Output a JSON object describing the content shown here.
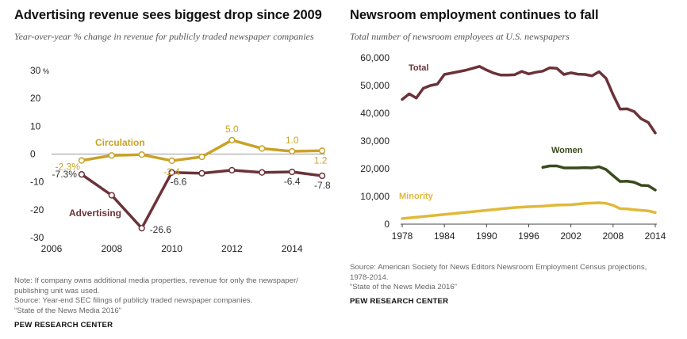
{
  "colors": {
    "circulation": "#c9a227",
    "advertising": "#6b3239",
    "total": "#6b3239",
    "women": "#3a4a1e",
    "minority": "#e0b93a",
    "zero_line": "#9a9a9a",
    "grid": "#dddddd"
  },
  "left": {
    "title": "Advertising revenue sees biggest drop since 2009",
    "subtitle": "Year-over-year % change in revenue for publicly traded newspaper companies",
    "notes": [
      "Note: If company owns additional media properties, revenue for only the newspaper/",
      "publishing unit was used.",
      "Source: Year-end SEC filings of publicly traded newspaper companies.",
      "“State of the News Media 2016”"
    ],
    "brand": "PEW RESEARCH CENTER"
  },
  "right": {
    "title": "Newsroom employment continues to fall",
    "subtitle": "Total number of newsroom employees at U.S. newspapers",
    "notes": [
      "Source: American Society for News Editors Newsroom Employment Census projections,",
      "1978-2014.",
      "“State of the News Media 2016”"
    ],
    "brand": "PEW RESEARCH CENTER"
  },
  "chart_data": [
    {
      "type": "line",
      "title": "Advertising revenue sees biggest drop since 2009",
      "ylabel": "%",
      "xlim": [
        2006,
        2015.5
      ],
      "ylim": [
        -30,
        30
      ],
      "xticks": [
        "2006",
        "2008",
        "2010",
        "2012",
        "2014"
      ],
      "yticks": [
        "30",
        "20",
        "10",
        "0",
        "-10",
        "-20",
        "-30"
      ],
      "y_unit": "%",
      "grid": false,
      "series": [
        {
          "name": "Circulation",
          "x": [
            2007,
            2008,
            2009,
            2010,
            2011,
            2012,
            2013,
            2014,
            2015
          ],
          "values": [
            -2.3,
            -0.5,
            -0.2,
            -2.4,
            -1.0,
            5.0,
            2.0,
            1.0,
            1.2
          ],
          "labels": [
            "-2.3%",
            "",
            "",
            "-2.4",
            "",
            "5.0",
            "",
            "1.0",
            "1.2"
          ]
        },
        {
          "name": "Advertising",
          "x": [
            2007,
            2008,
            2009,
            2010,
            2011,
            2012,
            2013,
            2014,
            2015
          ],
          "values": [
            -7.3,
            -14.8,
            -26.6,
            -6.6,
            -6.9,
            -5.8,
            -6.6,
            -6.4,
            -7.8
          ],
          "labels": [
            "-7.3%",
            "",
            "-26.6",
            "-6.6",
            "",
            "",
            "",
            "-6.4",
            "-7.8"
          ]
        }
      ]
    },
    {
      "type": "line",
      "title": "Newsroom employment continues to fall",
      "xlim": [
        1978,
        2014
      ],
      "ylim": [
        0,
        60000
      ],
      "xticks": [
        "1978",
        "1984",
        "1990",
        "1996",
        "2002",
        "2008",
        "2014"
      ],
      "yticks": [
        "60,000",
        "50,000",
        "40,000",
        "30,000",
        "20,000",
        "10,000",
        "0"
      ],
      "grid": false,
      "series": [
        {
          "name": "Total",
          "x": [
            1978,
            1979,
            1980,
            1981,
            1982,
            1983,
            1984,
            1985,
            1986,
            1987,
            1988,
            1989,
            1990,
            1991,
            1992,
            1993,
            1994,
            1995,
            1996,
            1997,
            1998,
            1999,
            2000,
            2001,
            2002,
            2003,
            2004,
            2005,
            2006,
            2007,
            2008,
            2009,
            2010,
            2011,
            2012,
            2013,
            2014
          ],
          "values": [
            45000,
            47000,
            45500,
            49000,
            50000,
            50500,
            54000,
            54500,
            55000,
            55500,
            56200,
            56900,
            55600,
            54500,
            53800,
            53800,
            53900,
            55100,
            54200,
            54800,
            55200,
            56400,
            56200,
            54000,
            54600,
            54100,
            54000,
            53500,
            55000,
            52600,
            46700,
            41500,
            41600,
            40600,
            38000,
            36700,
            32900
          ]
        },
        {
          "name": "Women",
          "x": [
            1998,
            1999,
            2000,
            2001,
            2002,
            2003,
            2004,
            2005,
            2006,
            2007,
            2008,
            2009,
            2010,
            2011,
            2012,
            2013,
            2014
          ],
          "values": [
            20500,
            21000,
            21000,
            20300,
            20300,
            20300,
            20400,
            20300,
            20700,
            19700,
            17500,
            15400,
            15500,
            15100,
            14000,
            13900,
            12300
          ]
        },
        {
          "name": "Minority",
          "x": [
            1978,
            1980,
            1982,
            1984,
            1986,
            1988,
            1990,
            1992,
            1994,
            1996,
            1998,
            2000,
            2002,
            2004,
            2005,
            2006,
            2007,
            2008,
            2009,
            2010,
            2011,
            2012,
            2013,
            2014
          ],
          "values": [
            2000,
            2500,
            3000,
            3500,
            4000,
            4500,
            5000,
            5500,
            6000,
            6300,
            6500,
            6900,
            7000,
            7500,
            7600,
            7700,
            7500,
            6800,
            5600,
            5500,
            5200,
            5000,
            4800,
            4200
          ]
        }
      ]
    }
  ]
}
